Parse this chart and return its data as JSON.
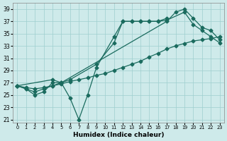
{
  "xlabel": "Humidex (Indice chaleur)",
  "bg_color": "#ceeaea",
  "line_color": "#1a6b5e",
  "xlim": [
    -0.5,
    23.5
  ],
  "ylim": [
    20.5,
    40.0
  ],
  "xticks": [
    0,
    1,
    2,
    3,
    4,
    5,
    6,
    7,
    8,
    9,
    10,
    11,
    12,
    13,
    14,
    15,
    16,
    17,
    18,
    19,
    20,
    21,
    22,
    23
  ],
  "yticks": [
    21,
    23,
    25,
    27,
    29,
    31,
    33,
    35,
    37,
    39
  ],
  "series1_x": [
    0,
    1,
    2,
    3,
    4,
    5,
    6,
    7,
    8,
    9,
    10,
    11,
    12,
    13,
    14,
    15,
    16,
    17,
    18,
    19,
    20,
    21,
    22,
    23
  ],
  "series1_y": [
    26.5,
    26.2,
    26.0,
    26.2,
    26.5,
    26.8,
    27.2,
    27.5,
    27.8,
    28.2,
    28.5,
    29.0,
    29.5,
    30.0,
    30.5,
    31.2,
    31.8,
    32.5,
    33.0,
    33.4,
    33.8,
    34.0,
    34.2,
    34.5
  ],
  "series2_x": [
    0,
    4,
    5,
    6,
    9,
    11,
    12,
    13,
    14,
    15,
    16,
    17,
    19,
    20,
    21,
    22,
    23
  ],
  "series2_y": [
    26.5,
    27.5,
    27.0,
    27.5,
    30.0,
    33.5,
    37.0,
    37.0,
    37.0,
    37.0,
    37.0,
    37.2,
    38.5,
    36.5,
    35.5,
    34.5,
    33.5
  ],
  "series3_x": [
    0,
    1,
    2,
    3,
    4,
    5,
    6,
    7,
    8,
    9,
    11,
    12,
    13,
    14,
    15,
    16,
    17
  ],
  "series3_y": [
    26.5,
    26.0,
    25.0,
    25.5,
    27.0,
    27.0,
    24.5,
    21.0,
    25.0,
    29.5,
    34.5,
    37.0,
    37.0,
    37.0,
    37.0,
    37.0,
    37.5
  ],
  "series4_x": [
    0,
    1,
    2,
    3,
    4,
    5,
    17,
    18,
    19,
    20,
    21,
    22,
    23
  ],
  "series4_y": [
    26.5,
    26.0,
    25.5,
    26.0,
    26.5,
    27.0,
    37.0,
    38.5,
    39.0,
    37.5,
    36.0,
    35.5,
    34.0
  ]
}
